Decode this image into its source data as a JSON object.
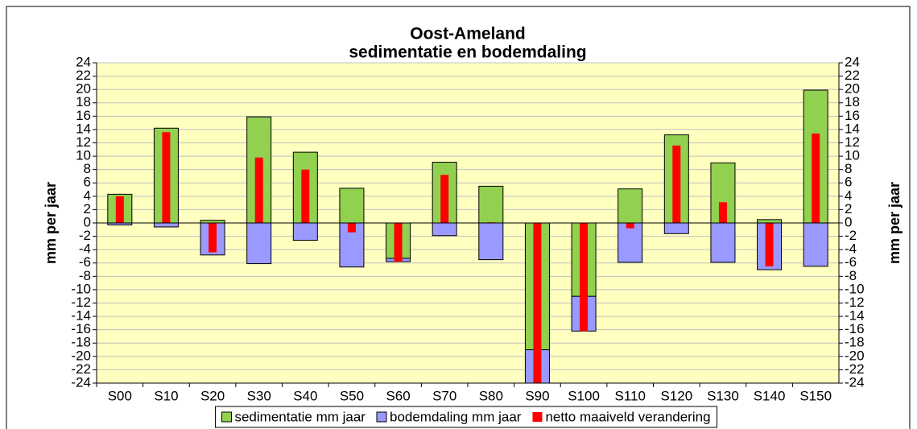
{
  "chart_data": {
    "type": "bar",
    "title": "Oost-Ameland",
    "subtitle": "sedimentatie en bodemdaling",
    "y_label": "mm per jaar",
    "y2_label": "mm per jaar",
    "categories": [
      "S00",
      "S10",
      "S20",
      "S30",
      "S40",
      "S50",
      "S60",
      "S70",
      "S80",
      "S90",
      "S100",
      "S110",
      "S120",
      "S130",
      "S140",
      "S150"
    ],
    "series": [
      {
        "name": "sedimentatie mm jaar",
        "color": "#92d050",
        "stacked": true,
        "values": [
          4.3,
          14.2,
          0.4,
          15.9,
          10.6,
          5.2,
          -5.3,
          9.1,
          5.5,
          -19,
          -11,
          5.1,
          13.2,
          9.0,
          0.5,
          19.9
        ]
      },
      {
        "name": "bodemdaling mm jaar",
        "color": "#9999ff",
        "stacked": true,
        "values": [
          -0.3,
          -0.6,
          -4.8,
          -6.1,
          -2.6,
          -6.6,
          -0.5,
          -1.9,
          -5.5,
          -5,
          -5.2,
          -5.9,
          -1.6,
          -5.9,
          -7.0,
          -6.5
        ]
      },
      {
        "name": "netto maaiveld verandering",
        "color": "#ff0000",
        "stacked": false,
        "values": [
          4.0,
          13.6,
          -4.4,
          9.8,
          8.0,
          -1.4,
          -5.8,
          7.2,
          0.1,
          -24,
          -16.2,
          -0.8,
          11.6,
          3.1,
          -6.5,
          13.4
        ]
      }
    ],
    "ylim": [
      -24,
      24
    ],
    "yticks": [
      -24,
      -22,
      -20,
      -18,
      -16,
      -14,
      -12,
      -10,
      -8,
      -6,
      -4,
      -2,
      0,
      2,
      4,
      6,
      8,
      10,
      12,
      14,
      16,
      18,
      20,
      22,
      24
    ],
    "y2lim": [
      -24,
      24
    ],
    "y2ticks": [
      -24,
      -22,
      -20,
      -18,
      -16,
      -14,
      -12,
      -10,
      -8,
      -6,
      -4,
      -2,
      0,
      2,
      4,
      6,
      8,
      10,
      12,
      14,
      16,
      18,
      20,
      22,
      24
    ],
    "grid": true,
    "legend": "bottom",
    "plot_background": "#ffffc0"
  }
}
